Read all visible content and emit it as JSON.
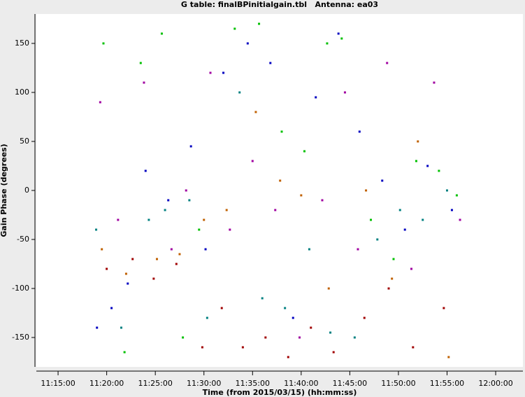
{
  "chart_data": {
    "type": "scatter",
    "title": "G table: finalBPinitialgain.tbl   Antenna: ea03",
    "x_label": "Time (from 2015/03/15) (hh:mm:ss)",
    "y_label": "Gain Phase (degrees)",
    "xlim": [
      "11:12:46",
      "12:02:48"
    ],
    "xticks": [
      "11:15:00",
      "11:20:00",
      "11:25:00",
      "11:30:00",
      "11:35:00",
      "11:40:00",
      "11:45:00",
      "11:50:00",
      "11:55:00",
      "12:00:00"
    ],
    "ylim": [
      -180,
      180
    ],
    "yticks": [
      150,
      100,
      50,
      0,
      -50,
      -100,
      -150
    ],
    "series": [
      {
        "color": "#0000c0",
        "x": [
          "11:19:00",
          "11:20:30",
          "11:22:10",
          "11:24:00",
          "11:26:20",
          "11:28:40",
          "11:30:10",
          "11:32:00",
          "11:34:30",
          "11:36:50",
          "11:39:10",
          "11:41:30",
          "11:43:50",
          "11:46:00",
          "11:48:20",
          "11:50:40",
          "11:53:00",
          "11:55:30"
        ],
        "values": [
          -140,
          -120,
          -95,
          20,
          -10,
          45,
          -60,
          120,
          150,
          130,
          -130,
          95,
          160,
          60,
          10,
          -40,
          25,
          -20
        ]
      },
      {
        "color": "#00c000",
        "x": [
          "11:19:40",
          "11:21:50",
          "11:23:30",
          "11:25:40",
          "11:27:50",
          "11:29:30",
          "11:33:10",
          "11:35:40",
          "11:38:00",
          "11:40:20",
          "11:42:40",
          "11:44:10",
          "11:47:10",
          "11:49:30",
          "11:51:50",
          "11:54:10",
          "11:56:00"
        ],
        "values": [
          150,
          -165,
          130,
          160,
          -150,
          -40,
          165,
          170,
          60,
          40,
          150,
          155,
          -30,
          -70,
          30,
          20,
          -5
        ]
      },
      {
        "color": "#a000a0",
        "x": [
          "11:19:20",
          "11:21:10",
          "11:23:50",
          "11:26:40",
          "11:28:10",
          "11:30:40",
          "11:32:40",
          "11:35:00",
          "11:37:20",
          "11:39:50",
          "11:42:10",
          "11:44:30",
          "11:45:50",
          "11:48:50",
          "11:51:20",
          "11:53:40",
          "11:56:20"
        ],
        "values": [
          90,
          -30,
          110,
          -60,
          0,
          120,
          -40,
          30,
          -20,
          -150,
          -10,
          100,
          -60,
          130,
          -80,
          110,
          -30
        ]
      },
      {
        "color": "#a00000",
        "x": [
          "11:20:00",
          "11:22:40",
          "11:24:50",
          "11:27:10",
          "11:29:50",
          "11:31:50",
          "11:34:00",
          "11:36:20",
          "11:38:40",
          "11:41:00",
          "11:43:20",
          "11:46:30",
          "11:49:00",
          "11:51:30",
          "11:54:40"
        ],
        "values": [
          -80,
          -70,
          -90,
          -75,
          -160,
          -120,
          -160,
          -150,
          -170,
          -140,
          -165,
          -130,
          -100,
          -160,
          -120
        ]
      },
      {
        "color": "#008080",
        "x": [
          "11:18:55",
          "11:21:30",
          "11:24:20",
          "11:26:00",
          "11:28:30",
          "11:30:20",
          "11:33:40",
          "11:36:00",
          "11:38:20",
          "11:40:50",
          "11:43:00",
          "11:45:30",
          "11:47:50",
          "11:50:10",
          "11:52:30",
          "11:55:00"
        ],
        "values": [
          -40,
          -140,
          -30,
          -20,
          -10,
          -130,
          100,
          -110,
          -120,
          -60,
          -145,
          -150,
          -50,
          -20,
          -30,
          0
        ]
      },
      {
        "color": "#c06000",
        "x": [
          "11:19:30",
          "11:22:00",
          "11:25:10",
          "11:27:30",
          "11:30:00",
          "11:32:20",
          "11:35:20",
          "11:37:50",
          "11:40:00",
          "11:42:50",
          "11:46:40",
          "11:49:20",
          "11:52:00",
          "11:55:10"
        ],
        "values": [
          -60,
          -85,
          -70,
          -65,
          -30,
          -20,
          80,
          10,
          -5,
          -100,
          0,
          -90,
          50,
          -170
        ]
      }
    ]
  }
}
